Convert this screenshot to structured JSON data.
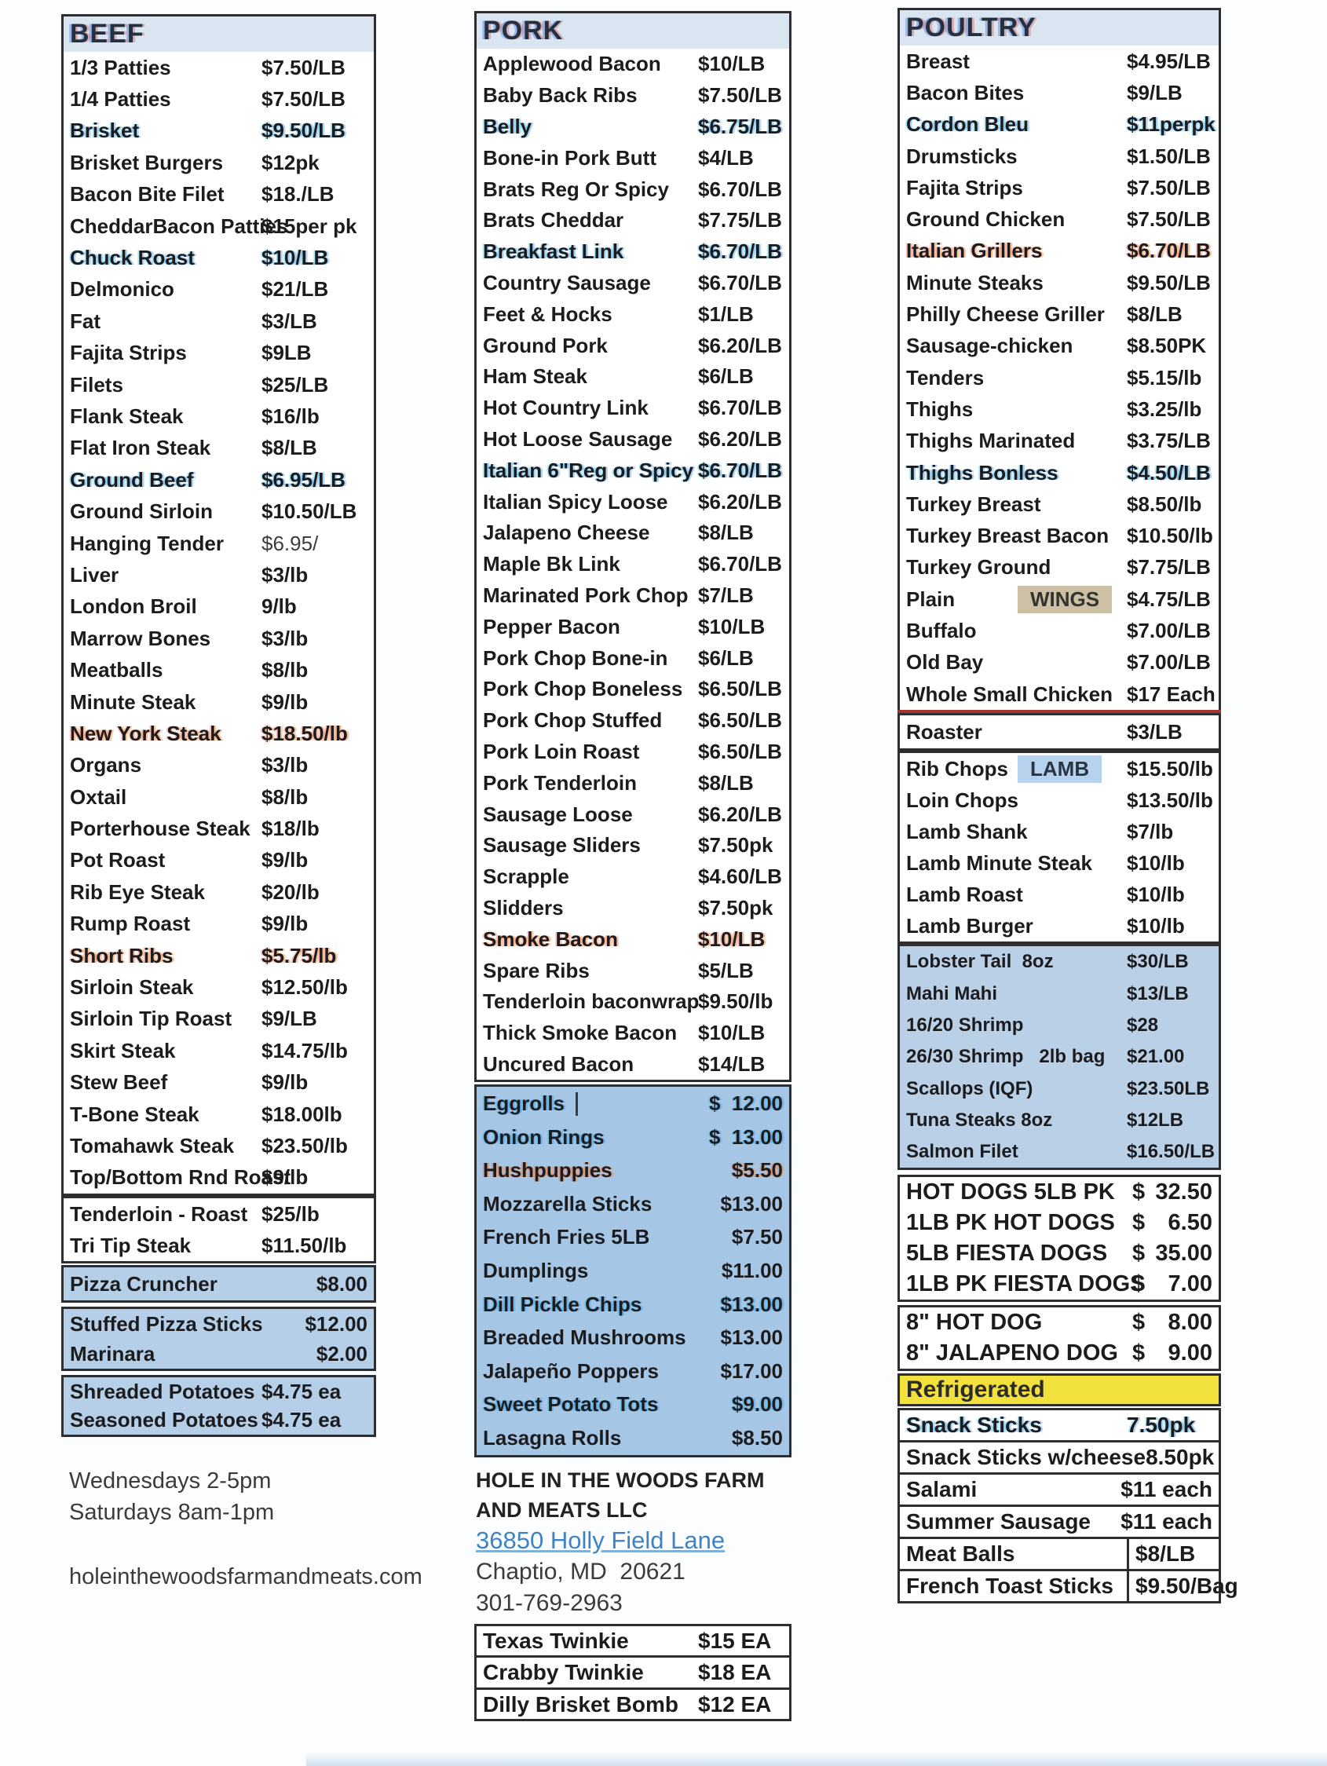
{
  "beef": {
    "title": "BEEF",
    "items": [
      {
        "name": "1/3 Patties",
        "price": "$7.50/LB"
      },
      {
        "name": "1/4 Patties",
        "price": "$7.50/LB"
      },
      {
        "name": "Brisket",
        "price": "$9.50/LB",
        "row_class": "hlb"
      },
      {
        "name": "Brisket Burgers",
        "price": "$12pk"
      },
      {
        "name": "Bacon Bite Filet",
        "price": "$18./LB"
      },
      {
        "name": "CheddarBacon Patties",
        "price": "$15per pk"
      },
      {
        "name": "Chuck Roast",
        "price": "$10/LB",
        "row_class": "hlb"
      },
      {
        "name": "Delmonico",
        "price": "$21/LB"
      },
      {
        "name": "Fat",
        "price": "$3/LB"
      },
      {
        "name": "Fajita Strips",
        "price": "$9LB"
      },
      {
        "name": "Filets",
        "price": "$25/LB"
      },
      {
        "name": "Flank Steak",
        "price": "$16/lb"
      },
      {
        "name": "Flat Iron Steak",
        "price": "$8/LB"
      },
      {
        "name": "Ground Beef",
        "price": "$6.95/LB",
        "row_class": "hlb"
      },
      {
        "name": "Ground Sirloin",
        "price": "$10.50/LB"
      },
      {
        "name": "Hanging Tender",
        "price": "$6.95/",
        "price_class": "light"
      },
      {
        "name": "Liver",
        "price": "$3/lb"
      },
      {
        "name": "London Broil",
        "price": "9/lb"
      },
      {
        "name": "Marrow Bones",
        "price": "$3/lb"
      },
      {
        "name": "Meatballs",
        "price": "$8/lb"
      },
      {
        "name": "Minute Steak",
        "price": "$9/lb"
      },
      {
        "name": "New York Steak",
        "price": "$18.50/lb",
        "row_class": "hlw"
      },
      {
        "name": "Organs",
        "price": "$3/lb"
      },
      {
        "name": "Oxtail",
        "price": "$8/lb"
      },
      {
        "name": "Porterhouse Steak",
        "price": "$18/lb"
      },
      {
        "name": "Pot Roast",
        "price": "$9/lb"
      },
      {
        "name": "Rib Eye Steak",
        "price": "$20/lb"
      },
      {
        "name": "Rump Roast",
        "price": "$9/lb"
      },
      {
        "name": "Short Ribs",
        "price": "$5.75/lb",
        "row_class": "hlw"
      },
      {
        "name": "Sirloin Steak",
        "price": "$12.50/lb"
      },
      {
        "name": "Sirloin Tip Roast",
        "price": "$9/LB"
      },
      {
        "name": "Skirt Steak",
        "price": "$14.75/lb"
      },
      {
        "name": "Stew Beef",
        "price": "$9/lb"
      },
      {
        "name": "T-Bone Steak",
        "price": "$18.00lb"
      },
      {
        "name": "Tomahawk Steak",
        "price": "$23.50/lb"
      },
      {
        "name": "Top/Bottom Rnd Roast",
        "price": "$9/lb"
      }
    ],
    "extra": [
      {
        "name": "Tenderloin - Roast",
        "price": "$25/lb"
      },
      {
        "name": "Tri Tip Steak",
        "price": "$11.50/lb"
      }
    ],
    "pizza": [
      {
        "name": "Pizza Cruncher",
        "price": "$8.00"
      }
    ],
    "stuffed": [
      {
        "name": "Stuffed Pizza Sticks",
        "price": "$12.00"
      },
      {
        "name": "Marinara",
        "price": "$2.00"
      }
    ],
    "potatoes": [
      {
        "name": "Shreaded Potatoes",
        "price": "$4.75 ea"
      },
      {
        "name": "Seasoned Potatoes",
        "price": "$4.75 ea"
      }
    ]
  },
  "left_footer": {
    "hours1": "Wednesdays 2-5pm",
    "hours2": "Saturdays 8am-1pm",
    "website": "holeinthewoodsfarmandmeats.com"
  },
  "pork": {
    "title": "PORK",
    "items": [
      {
        "name": "Applewood Bacon",
        "price": "$10/LB"
      },
      {
        "name": "Baby Back Ribs",
        "price": "$7.50/LB"
      },
      {
        "name": "Belly",
        "price": "$6.75/LB",
        "row_class": "hlb"
      },
      {
        "name": "Bone-in Pork Butt",
        "price": "$4/LB"
      },
      {
        "name": "Brats Reg Or Spicy",
        "price": "$6.70/LB"
      },
      {
        "name": "Brats Cheddar",
        "price": "$7.75/LB"
      },
      {
        "name": "Breakfast Link",
        "price": "$6.70/LB",
        "row_class": "hlb"
      },
      {
        "name": "Country Sausage",
        "price": "$6.70/LB"
      },
      {
        "name": "Feet & Hocks",
        "price": "$1/LB"
      },
      {
        "name": "Ground Pork",
        "price": "$6.20/LB"
      },
      {
        "name": "Ham Steak",
        "price": "$6/LB"
      },
      {
        "name": "Hot Country Link",
        "price": "$6.70/LB"
      },
      {
        "name": "Hot Loose Sausage",
        "price": "$6.20/LB"
      },
      {
        "name": "Italian 6\"Reg or Spicy",
        "price": "$6.70/LB",
        "row_class": "hlb"
      },
      {
        "name": "Italian Spicy Loose",
        "price": "$6.20/LB"
      },
      {
        "name": "Jalapeno Cheese",
        "price": "$8/LB"
      },
      {
        "name": "Maple Bk Link",
        "price": "$6.70/LB"
      },
      {
        "name": "Marinated Pork Chop",
        "price": "$7/LB"
      },
      {
        "name": "Pepper Bacon",
        "price": "$10/LB"
      },
      {
        "name": "Pork Chop Bone-in",
        "price": "$6/LB"
      },
      {
        "name": "Pork Chop Boneless",
        "price": "$6.50/LB"
      },
      {
        "name": "Pork Chop Stuffed",
        "price": "$6.50/LB"
      },
      {
        "name": "Pork Loin Roast",
        "price": "$6.50/LB"
      },
      {
        "name": "Pork Tenderloin",
        "price": "$8/LB"
      },
      {
        "name": "Sausage Loose",
        "price": "$6.20/LB"
      },
      {
        "name": "Sausage Sliders",
        "price": "$7.50pk"
      },
      {
        "name": "Scrapple",
        "price": "$4.60/LB"
      },
      {
        "name": "Slidders",
        "price": "$7.50pk"
      },
      {
        "name": "Smoke Bacon",
        "price": "$10/LB",
        "row_class": "hlw"
      },
      {
        "name": "Spare Ribs",
        "price": "$5/LB"
      },
      {
        "name": "Tenderloin baconwrap",
        "price": "$9.50/lb"
      },
      {
        "name": "Thick Smoke Bacon",
        "price": "$10/LB"
      },
      {
        "name": "Uncured Bacon",
        "price": "$14/LB"
      }
    ],
    "apps": [
      {
        "name": "Eggrolls",
        "cur": "$",
        "num": "12.00",
        "price_class": "split",
        "name_class": "tick",
        "row_class": "hlb"
      },
      {
        "name": "Onion Rings",
        "cur": "$",
        "num": "13.00",
        "price_class": "split",
        "row_class": "hlb"
      },
      {
        "name": "Hushpuppies",
        "price": "$5.50",
        "row_class": "hlw"
      },
      {
        "name": "Mozzarella Sticks",
        "price": "$13.00"
      },
      {
        "name": "French Fries 5LB",
        "price": "$7.50"
      },
      {
        "name": "Dumplings",
        "price": "$11.00"
      },
      {
        "name": "Dill Pickle Chips",
        "price": "$13.00",
        "row_class": "hlb"
      },
      {
        "name": "Breaded Mushrooms",
        "price": "$13.00"
      },
      {
        "name": "Jalapeño Poppers",
        "price": "$17.00"
      },
      {
        "name": "Sweet Potato Tots",
        "price": "$9.00",
        "row_class": "hlb"
      },
      {
        "name": "Lasagna Rolls",
        "price": "$8.50"
      }
    ],
    "footer": {
      "company": "HOLE IN THE WOODS FARM AND MEATS LLC",
      "address": "36850 Holly Field Lane",
      "city": "Chaptio, MD  20621",
      "phone": "301-769-2963"
    },
    "twinkies": [
      {
        "name": "Texas Twinkie",
        "price": "$15 EA"
      },
      {
        "name": "Crabby Twinkie",
        "price": "$18 EA"
      },
      {
        "name": "Dilly Brisket Bomb",
        "price": "$12 EA"
      }
    ]
  },
  "poultry": {
    "title": "POULTRY",
    "items": [
      {
        "name": "Breast",
        "price": "$4.95/LB"
      },
      {
        "name": "Bacon Bites",
        "price": "$9/LB"
      },
      {
        "name": "Cordon Bleu",
        "price": "$11perpk",
        "row_class": "hlb"
      },
      {
        "name": "Drumsticks",
        "price": "$1.50/LB"
      },
      {
        "name": "Fajita Strips",
        "price": "$7.50/LB"
      },
      {
        "name": "Ground Chicken",
        "price": "$7.50/LB"
      },
      {
        "name": "Italian Grillers",
        "price": "$6.70/LB",
        "row_class": "hlw"
      },
      {
        "name": "Minute Steaks",
        "price": "$9.50/LB"
      },
      {
        "name": "Philly Cheese Griller",
        "price": "$8/LB"
      },
      {
        "name": "Sausage-chicken",
        "price": "$8.50PK"
      },
      {
        "name": "Tenders",
        "price": "$5.15/lb"
      },
      {
        "name": "Thighs",
        "price": "$3.25/lb"
      },
      {
        "name": "Thighs Marinated",
        "price": "$3.75/LB"
      },
      {
        "name": "Thighs Bonless",
        "price": "$4.50/LB",
        "row_class": "hlb"
      },
      {
        "name": "Turkey Breast",
        "price": "$8.50/lb"
      },
      {
        "name": "Turkey Breast Bacon",
        "price": "$10.50/lb"
      },
      {
        "name": "Turkey Ground",
        "price": "$7.75/LB"
      },
      {
        "name": "Plain",
        "price": "$4.75/LB",
        "chip": "WINGS",
        "chip_class": "wings"
      },
      {
        "name": "Buffalo",
        "price": "$7.00/LB"
      },
      {
        "name": "Old Bay",
        "price": "$7.00/LB"
      },
      {
        "name": "Whole Small Chicken",
        "price": "$17 Each"
      }
    ],
    "roaster": [
      {
        "name": "Roaster",
        "price": "$3/LB"
      }
    ],
    "lamb": [
      {
        "name": "Rib Chops",
        "price": "$15.50/lb",
        "chip": "LAMB",
        "chip_class": "lamb"
      },
      {
        "name": "Loin Chops",
        "price": "$13.50/lb"
      },
      {
        "name": "Lamb Shank",
        "price": "$7/lb"
      },
      {
        "name": "Lamb Minute Steak",
        "price": "$10/lb"
      },
      {
        "name": "Lamb Roast",
        "price": "$10/lb"
      },
      {
        "name": "Lamb Burger",
        "price": "$10/lb"
      }
    ],
    "seafood": [
      {
        "name": "Lobster Tail  8oz",
        "price": "$30/LB"
      },
      {
        "name": "Mahi Mahi",
        "price": "$13/LB"
      },
      {
        "name": "16/20 Shrimp",
        "price": "$28"
      },
      {
        "name": "26/30 Shrimp   2lb bag",
        "price": "$21.00"
      },
      {
        "name": "Scallops (IQF)",
        "price": "$23.50LB"
      },
      {
        "name": "Tuna Steaks 8oz",
        "price": "$12LB"
      },
      {
        "name": "Salmon Filet",
        "price": "$16.50/LB"
      }
    ],
    "dogs": [
      {
        "name": "HOT DOGS 5LB PK",
        "cur": "$",
        "num": "32.50",
        "price_class": "split"
      },
      {
        "name": "1LB PK HOT DOGS",
        "cur": "$",
        "num": "6.50",
        "price_class": "split"
      },
      {
        "name": "5LB FIESTA DOGS",
        "cur": "$",
        "num": "35.00",
        "price_class": "split"
      },
      {
        "name": "1LB PK FIESTA DOGS",
        "cur": "$",
        "num": "7.00",
        "price_class": "split"
      }
    ],
    "dogs8": [
      {
        "name": "8\" HOT DOG",
        "cur": "$",
        "num": "8.00",
        "price_class": "split"
      },
      {
        "name": "8\" JALAPENO DOG",
        "cur": "$",
        "num": "9.00",
        "price_class": "split"
      }
    ],
    "refrigerated_label": "Refrigerated",
    "bottom": [
      {
        "name": "Snack Sticks",
        "price": "7.50pk",
        "row_class": "hlb"
      },
      {
        "name": "Snack Sticks w/cheese",
        "price": "8.50pk",
        "price_class": "ralign"
      },
      {
        "name": "Salami",
        "price": "$11 each",
        "price_class": "ralign"
      },
      {
        "name": "Summer Sausage",
        "price": "$11 each",
        "price_class": "ralign"
      },
      {
        "name": "Meat Balls",
        "price": "$8/LB",
        "price_class": "cell"
      },
      {
        "name": "French Toast Sticks",
        "price": "$9.50/Bag",
        "price_class": "cell"
      }
    ]
  }
}
